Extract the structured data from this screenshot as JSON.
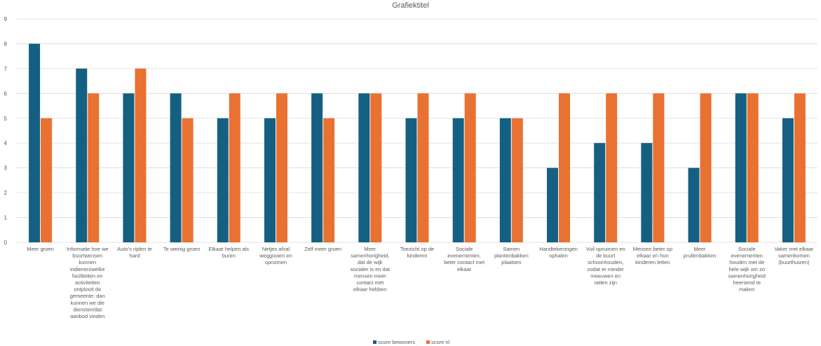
{
  "chart_data": {
    "type": "bar",
    "title": "Grafiektitel",
    "xlabel": "",
    "ylabel": "",
    "ylim": [
      0,
      9
    ],
    "yticks": [
      0,
      1,
      2,
      3,
      4,
      5,
      6,
      7,
      8,
      9
    ],
    "grid": true,
    "legend_position": "bottom",
    "categories": [
      [
        "Meer groen"
      ],
      [
        "Informatie hoe we",
        "buurtwensen",
        "kunnen",
        "indienen/welke",
        "faciliteiten en",
        "activiteiten",
        "ontplooit de",
        "gemeente; dan",
        "kunnen we die",
        "diensten/dat",
        "aanbod vinden"
      ],
      [
        "Auto's rijden te",
        "hard"
      ],
      [
        "Te weinig groen"
      ],
      [
        "Elkaar helpen als",
        "buren"
      ],
      [
        "Netjes afval",
        "weggooien en",
        "opruimen"
      ],
      [
        "Zelf meer groen"
      ],
      [
        "Meer",
        "samenhorigheid,",
        "dat de wijk",
        "socialer is en dat",
        "mensen meer",
        "contact met",
        "elkaar hebben"
      ],
      [
        "Toezicht op de",
        "kinderen"
      ],
      [
        "Sociale",
        "evenementen,",
        "beter contact met",
        "elkaar"
      ],
      [
        "Samen",
        "plantenbakken",
        "plaatsen"
      ],
      [
        "Handtekeningen",
        "ophalen"
      ],
      [
        "Vuil opruimen en",
        "de buurt",
        "schoonhouden,",
        "zodat er minder",
        "meeuwen en",
        "ratten zijn"
      ],
      [
        "Mensen beter op",
        "elkaar en hun",
        "kinderen letten"
      ],
      [
        "Meer",
        "prullenbakken"
      ],
      [
        "Sociale",
        "evenementen",
        "houden met de",
        "hele wijk om zo",
        "samenhorigheid",
        "heersend te",
        "maken"
      ],
      [
        "Vaker met elkaar",
        "samenkomen",
        "(buurthuizen)"
      ]
    ],
    "series": [
      {
        "name": "score bewoners",
        "color": "#156082",
        "values": [
          8,
          7,
          6,
          6,
          5,
          5,
          6,
          6,
          5,
          5,
          5,
          3,
          4,
          4,
          3,
          6,
          5
        ]
      },
      {
        "name": "score nl",
        "color": "#E97132",
        "values": [
          5,
          6,
          7,
          5,
          6,
          6,
          5,
          6,
          6,
          6,
          5,
          6,
          6,
          6,
          6,
          6,
          6
        ]
      }
    ],
    "gridline_color": "#d9d9d9"
  }
}
